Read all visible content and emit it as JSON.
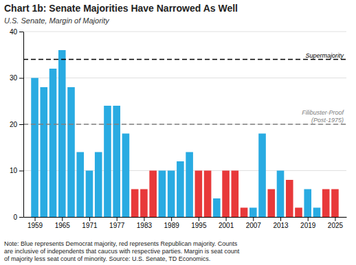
{
  "chart_data": {
    "type": "bar",
    "title": "Chart 1b: Senate Majorities Have Narrowed As Well",
    "subtitle": "U.S. Senate, Margin of Majority",
    "note": "Note: Blue represents Democrat majority, red represents Republican majority. Counts\nare inclusive of independents that caucus with respective parties. Margin is seat count\nof majority less seat count of minority.  Source: U.S. Senate, TD Economics.",
    "x": [
      1959,
      1961,
      1963,
      1965,
      1967,
      1969,
      1971,
      1973,
      1975,
      1977,
      1979,
      1981,
      1983,
      1985,
      1987,
      1989,
      1991,
      1993,
      1995,
      1997,
      1999,
      2001,
      2003,
      2005,
      2007,
      2009,
      2011,
      2013,
      2015,
      2017,
      2019,
      2021,
      2023,
      2025
    ],
    "values": [
      30,
      28,
      32,
      36,
      28,
      14,
      10,
      14,
      24,
      24,
      18,
      6,
      6,
      10,
      10,
      10,
      12,
      14,
      10,
      10,
      4,
      10,
      10,
      2,
      2,
      18,
      6,
      10,
      8,
      2,
      6,
      2,
      6,
      6
    ],
    "colors": [
      "#29ABE2",
      "#29ABE2",
      "#29ABE2",
      "#29ABE2",
      "#29ABE2",
      "#29ABE2",
      "#29ABE2",
      "#29ABE2",
      "#29ABE2",
      "#29ABE2",
      "#29ABE2",
      "#E8393A",
      "#E8393A",
      "#E8393A",
      "#29ABE2",
      "#29ABE2",
      "#29ABE2",
      "#29ABE2",
      "#E8393A",
      "#E8393A",
      "#29ABE2",
      "#E8393A",
      "#E8393A",
      "#E8393A",
      "#29ABE2",
      "#29ABE2",
      "#E8393A",
      "#29ABE2",
      "#E8393A",
      "#E8393A",
      "#29ABE2",
      "#29ABE2",
      "#E8393A",
      "#E8393A"
    ],
    "xlim": [
      1956.5,
      2027.5
    ],
    "xticks": [
      1959,
      1965,
      1971,
      1977,
      1983,
      1989,
      1995,
      2001,
      2007,
      2013,
      2019,
      2025
    ],
    "ylim": [
      0,
      40
    ],
    "yticks": [
      0,
      10,
      20,
      30,
      40
    ],
    "grid": true,
    "annotations": [
      {
        "text": "Supermajority",
        "y": 34,
        "color": "#000000",
        "line_style": "dashed"
      },
      {
        "text": "Filibuster-Proof\n(Post-1975)",
        "y": 20,
        "color": "#808080",
        "line_style": "dashed"
      }
    ]
  }
}
